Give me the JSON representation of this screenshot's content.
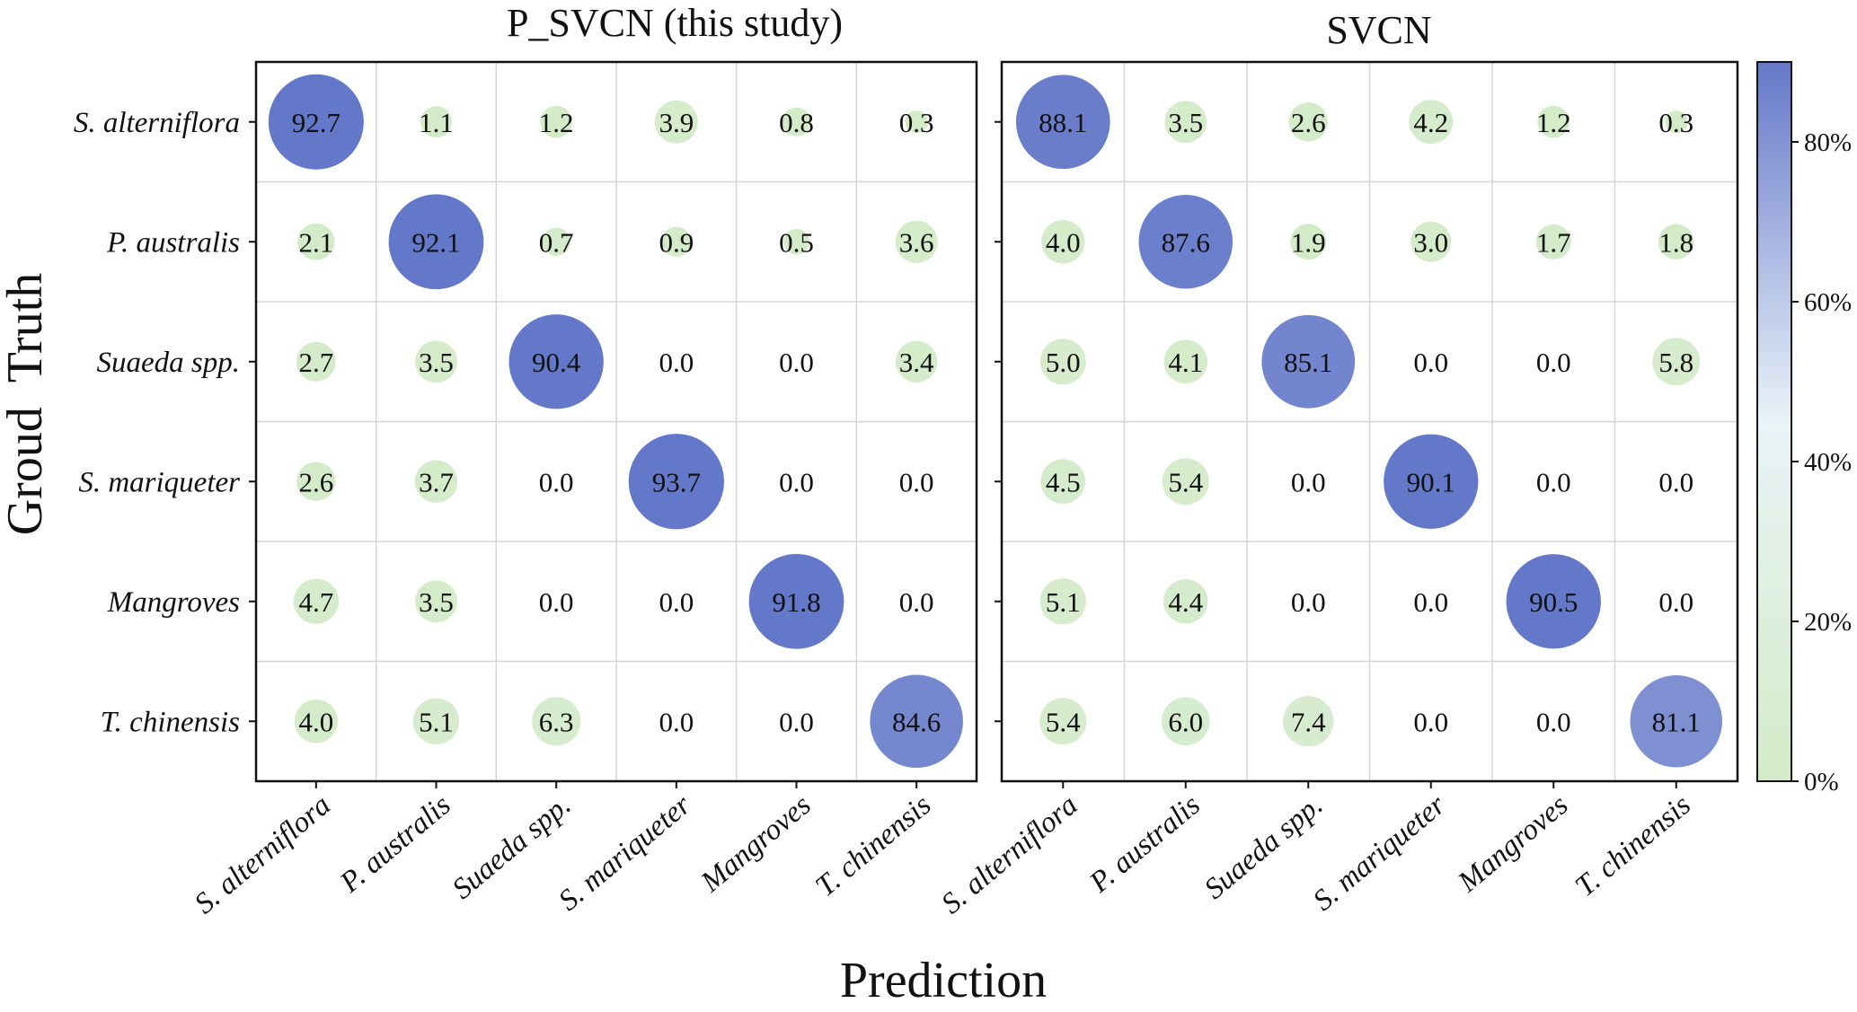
{
  "chart_data": [
    {
      "type": "bubble-heatmap",
      "title": "P_SVCN (this study)",
      "xlabel": "Prediction",
      "ylabel": "Groud  Truth",
      "rows": [
        "S. alterniflora",
        "P. australis",
        "Suaeda spp.",
        "S. mariqueter",
        "Mangroves",
        "T. chinensis"
      ],
      "columns": [
        "S. alterniflora",
        "P. australis",
        "Suaeda spp.",
        "S. mariqueter",
        "Mangroves",
        "T. chinensis"
      ],
      "values": [
        [
          92.7,
          1.1,
          1.2,
          3.9,
          0.8,
          0.3
        ],
        [
          2.1,
          92.1,
          0.7,
          0.9,
          0.5,
          3.6
        ],
        [
          2.7,
          3.5,
          90.4,
          0.0,
          0.0,
          3.4
        ],
        [
          2.6,
          3.7,
          0.0,
          93.7,
          0.0,
          0.0
        ],
        [
          4.7,
          3.5,
          0.0,
          0.0,
          91.8,
          0.0
        ],
        [
          4.0,
          5.1,
          6.3,
          0.0,
          0.0,
          84.6
        ]
      ],
      "grid": true
    },
    {
      "type": "bubble-heatmap",
      "title": "SVCN",
      "rows": [
        "S. alterniflora",
        "P. australis",
        "Suaeda spp.",
        "S. mariqueter",
        "Mangroves",
        "T. chinensis"
      ],
      "columns": [
        "S. alterniflora",
        "P. australis",
        "Suaeda spp.",
        "S. mariqueter",
        "Mangroves",
        "T. chinensis"
      ],
      "values": [
        [
          88.1,
          3.5,
          2.6,
          4.2,
          1.2,
          0.3
        ],
        [
          4.0,
          87.6,
          1.9,
          3.0,
          1.7,
          1.8
        ],
        [
          5.0,
          4.1,
          85.1,
          0.0,
          0.0,
          5.8
        ],
        [
          4.5,
          5.4,
          0.0,
          90.1,
          0.0,
          0.0
        ],
        [
          5.1,
          4.4,
          0.0,
          0.0,
          90.5,
          0.0
        ],
        [
          5.4,
          6.0,
          7.4,
          0.0,
          0.0,
          81.1
        ]
      ],
      "grid": true
    }
  ],
  "colorbar": {
    "ticks": [
      "0%",
      "20%",
      "40%",
      "60%",
      "80%"
    ],
    "tick_values": [
      0,
      20,
      40,
      60,
      80
    ],
    "range": [
      0,
      90
    ],
    "colors": {
      "low": "#d3ebc7",
      "mid": "#eaf3f8",
      "high": "#6478c9"
    }
  }
}
